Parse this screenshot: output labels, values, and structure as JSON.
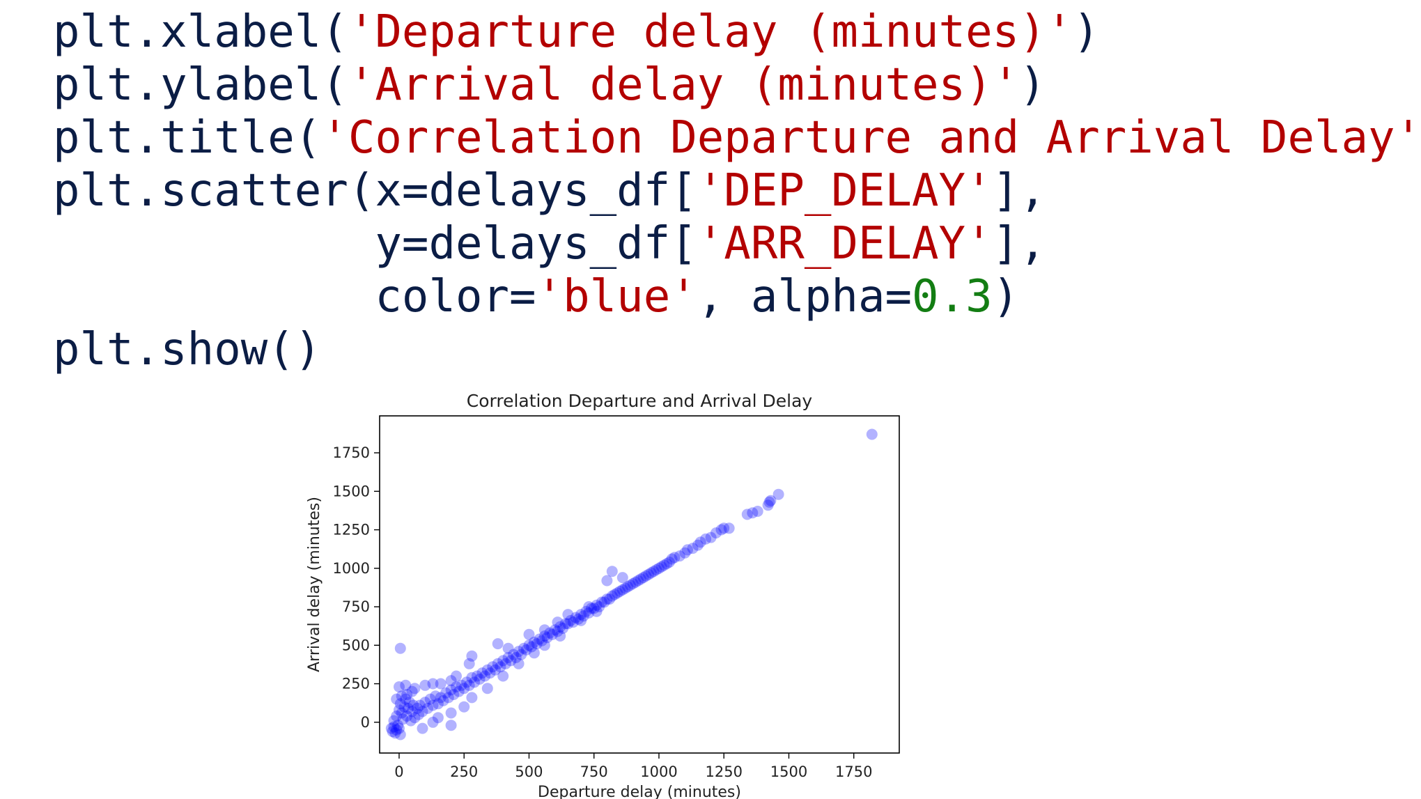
{
  "code_cell": {
    "lines": [
      [
        {
          "t": "plt.xlabel(",
          "k": "plain"
        },
        {
          "t": "'Departure delay (minutes)'",
          "k": "str"
        },
        {
          "t": ")",
          "k": "plain"
        }
      ],
      [
        {
          "t": "plt.ylabel(",
          "k": "plain"
        },
        {
          "t": "'Arrival delay (minutes)'",
          "k": "str"
        },
        {
          "t": ")",
          "k": "plain"
        }
      ],
      [
        {
          "t": "plt.title(",
          "k": "plain"
        },
        {
          "t": "'Correlation Departure and Arrival Delay'",
          "k": "str"
        },
        {
          "t": ")",
          "k": "plain"
        }
      ],
      [
        {
          "t": "plt.scatter(x=delays_df[",
          "k": "plain"
        },
        {
          "t": "'DEP_DELAY'",
          "k": "str"
        },
        {
          "t": "],",
          "k": "plain"
        }
      ],
      [
        {
          "t": "            y=delays_df[",
          "k": "plain"
        },
        {
          "t": "'ARR_DELAY'",
          "k": "str"
        },
        {
          "t": "],",
          "k": "plain"
        }
      ],
      [
        {
          "t": "            color=",
          "k": "plain"
        },
        {
          "t": "'blue'",
          "k": "str"
        },
        {
          "t": ", alpha=",
          "k": "plain"
        },
        {
          "t": "0.3",
          "k": "num"
        },
        {
          "t": ")",
          "k": "plain"
        }
      ],
      [
        {
          "t": "plt.show()",
          "k": "plain"
        }
      ]
    ]
  },
  "colors": {
    "code_text": "#0b1d45",
    "code_string": "#b30000",
    "code_number": "#137d13",
    "marker": "#0000ff"
  },
  "chart_data": {
    "type": "scatter",
    "title": "Correlation Departure and Arrival Delay",
    "xlabel": "Departure delay (minutes)",
    "ylabel": "Arrival delay (minutes)",
    "xlim": [
      -75,
      1925
    ],
    "ylim": [
      -200,
      1990
    ],
    "xticks": [
      0,
      250,
      500,
      750,
      1000,
      1250,
      1500,
      1750
    ],
    "yticks": [
      0,
      250,
      500,
      750,
      1000,
      1250,
      1500,
      1750
    ],
    "grid": false,
    "legend": "none",
    "marker_color": "#0000ff",
    "marker_alpha": 0.3,
    "series": [
      {
        "points": [
          [
            -30,
            -40
          ],
          [
            -25,
            -60
          ],
          [
            -20,
            -30
          ],
          [
            -15,
            -70
          ],
          [
            -10,
            -50
          ],
          [
            -5,
            -20
          ],
          [
            0,
            -40
          ],
          [
            5,
            -80
          ],
          [
            -20,
            10
          ],
          [
            -10,
            40
          ],
          [
            0,
            80
          ],
          [
            5,
            120
          ],
          [
            10,
            60
          ],
          [
            15,
            20
          ],
          [
            20,
            100
          ],
          [
            25,
            150
          ],
          [
            30,
            40
          ],
          [
            35,
            90
          ],
          [
            40,
            130
          ],
          [
            45,
            10
          ],
          [
            50,
            70
          ],
          [
            55,
            110
          ],
          [
            60,
            30
          ],
          [
            70,
            90
          ],
          [
            75,
            50
          ],
          [
            80,
            110
          ],
          [
            90,
            70
          ],
          [
            100,
            130
          ],
          [
            110,
            90
          ],
          [
            120,
            150
          ],
          [
            130,
            110
          ],
          [
            140,
            170
          ],
          [
            150,
            120
          ],
          [
            160,
            160
          ],
          [
            170,
            140
          ],
          [
            180,
            190
          ],
          [
            190,
            160
          ],
          [
            200,
            210
          ],
          [
            210,
            180
          ],
          [
            220,
            230
          ],
          [
            230,
            200
          ],
          [
            240,
            240
          ],
          [
            250,
            220
          ],
          [
            260,
            260
          ],
          [
            270,
            240
          ],
          [
            280,
            290
          ],
          [
            290,
            260
          ],
          [
            300,
            300
          ],
          [
            310,
            280
          ],
          [
            320,
            320
          ],
          [
            330,
            300
          ],
          [
            340,
            340
          ],
          [
            350,
            320
          ],
          [
            360,
            360
          ],
          [
            370,
            340
          ],
          [
            380,
            380
          ],
          [
            390,
            360
          ],
          [
            400,
            400
          ],
          [
            410,
            380
          ],
          [
            420,
            420
          ],
          [
            430,
            400
          ],
          [
            440,
            440
          ],
          [
            450,
            420
          ],
          [
            460,
            460
          ],
          [
            470,
            440
          ],
          [
            480,
            480
          ],
          [
            490,
            470
          ],
          [
            500,
            500
          ],
          [
            510,
            490
          ],
          [
            520,
            520
          ],
          [
            530,
            510
          ],
          [
            540,
            540
          ],
          [
            550,
            530
          ],
          [
            560,
            560
          ],
          [
            570,
            550
          ],
          [
            580,
            580
          ],
          [
            590,
            570
          ],
          [
            600,
            600
          ],
          [
            610,
            590
          ],
          [
            620,
            620
          ],
          [
            630,
            610
          ],
          [
            640,
            640
          ],
          [
            650,
            640
          ],
          [
            660,
            660
          ],
          [
            670,
            650
          ],
          [
            680,
            680
          ],
          [
            690,
            670
          ],
          [
            700,
            700
          ],
          [
            710,
            690
          ],
          [
            720,
            720
          ],
          [
            730,
            710
          ],
          [
            740,
            740
          ],
          [
            750,
            740
          ],
          [
            760,
            760
          ],
          [
            770,
            750
          ],
          [
            780,
            780
          ],
          [
            790,
            780
          ],
          [
            800,
            800
          ],
          [
            810,
            800
          ],
          [
            820,
            820
          ],
          [
            830,
            830
          ],
          [
            840,
            840
          ],
          [
            850,
            850
          ],
          [
            860,
            860
          ],
          [
            870,
            870
          ],
          [
            880,
            880
          ],
          [
            890,
            890
          ],
          [
            900,
            900
          ],
          [
            910,
            910
          ],
          [
            920,
            920
          ],
          [
            930,
            930
          ],
          [
            940,
            940
          ],
          [
            950,
            950
          ],
          [
            960,
            960
          ],
          [
            970,
            970
          ],
          [
            980,
            980
          ],
          [
            990,
            990
          ],
          [
            1000,
            1000
          ],
          [
            1010,
            1010
          ],
          [
            1020,
            1020
          ],
          [
            1030,
            1030
          ],
          [
            1040,
            1040
          ],
          [
            1050,
            1060
          ],
          [
            1060,
            1070
          ],
          [
            1080,
            1080
          ],
          [
            1100,
            1100
          ],
          [
            1110,
            1120
          ],
          [
            1130,
            1130
          ],
          [
            1150,
            1150
          ],
          [
            1160,
            1170
          ],
          [
            1180,
            1190
          ],
          [
            1200,
            1200
          ],
          [
            1220,
            1230
          ],
          [
            1240,
            1250
          ],
          [
            1250,
            1260
          ],
          [
            1270,
            1260
          ],
          [
            1340,
            1350
          ],
          [
            1360,
            1360
          ],
          [
            1380,
            1370
          ],
          [
            1420,
            1410
          ],
          [
            1425,
            1430
          ],
          [
            1430,
            1440
          ],
          [
            1460,
            1480
          ],
          [
            1820,
            1870
          ],
          [
            5,
            480
          ],
          [
            0,
            230
          ],
          [
            25,
            240
          ],
          [
            60,
            220
          ],
          [
            100,
            240
          ],
          [
            130,
            250
          ],
          [
            160,
            250
          ],
          [
            200,
            270
          ],
          [
            220,
            300
          ],
          [
            270,
            380
          ],
          [
            280,
            430
          ],
          [
            380,
            510
          ],
          [
            420,
            480
          ],
          [
            500,
            570
          ],
          [
            560,
            600
          ],
          [
            610,
            650
          ],
          [
            650,
            700
          ],
          [
            730,
            750
          ],
          [
            800,
            920
          ],
          [
            820,
            980
          ],
          [
            860,
            940
          ],
          [
            90,
            -40
          ],
          [
            130,
            0
          ],
          [
            150,
            30
          ],
          [
            200,
            60
          ],
          [
            250,
            100
          ],
          [
            280,
            160
          ],
          [
            340,
            220
          ],
          [
            400,
            300
          ],
          [
            460,
            380
          ],
          [
            520,
            450
          ],
          [
            560,
            500
          ],
          [
            620,
            560
          ],
          [
            700,
            660
          ],
          [
            760,
            720
          ],
          [
            200,
            -20
          ],
          [
            -10,
            150
          ],
          [
            30,
            180
          ],
          [
            10,
            170
          ],
          [
            50,
            200
          ]
        ]
      }
    ]
  }
}
